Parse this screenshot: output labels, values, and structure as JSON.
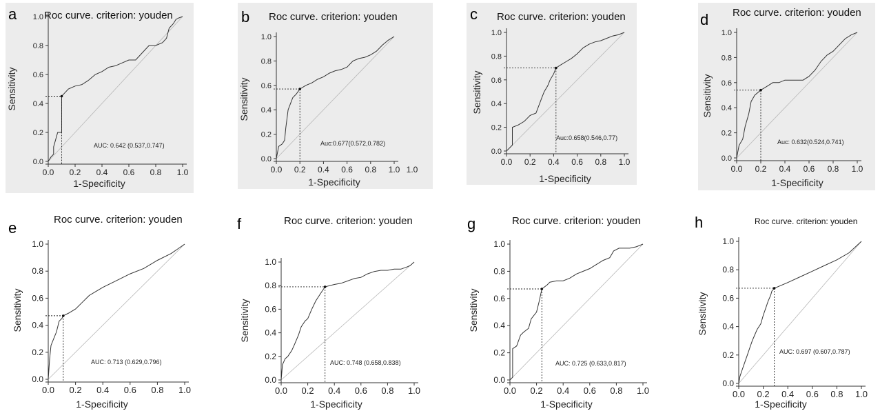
{
  "chart_data": [
    {
      "type": "line",
      "panel": "a",
      "title": "Roc curve. criterion: youden",
      "xlabel": "1-Specificity",
      "ylabel": "Sensitivity",
      "xlim": [
        0,
        1
      ],
      "ylim": [
        0,
        1
      ],
      "xticks": [
        "0.0",
        "0.2",
        "0.4",
        "0.6",
        "0.8",
        "1.0"
      ],
      "yticks": [
        "0.0",
        "0.2",
        "0.4",
        "0.6",
        "0.8",
        "1.0"
      ],
      "annotation": "AUC: 0.642 (0.537,0.747)",
      "cutoff": {
        "x": 0.1,
        "y": 0.45
      },
      "background": "#ececec",
      "x": [
        0,
        0.02,
        0.04,
        0.04,
        0.07,
        0.07,
        0.1,
        0.1,
        0.12,
        0.15,
        0.2,
        0.25,
        0.3,
        0.35,
        0.4,
        0.45,
        0.5,
        0.55,
        0.6,
        0.65,
        0.7,
        0.75,
        0.8,
        0.85,
        0.88,
        0.9,
        0.93,
        0.95,
        0.97,
        1.0
      ],
      "y": [
        0,
        0.03,
        0.05,
        0.1,
        0.2,
        0.2,
        0.2,
        0.45,
        0.47,
        0.5,
        0.52,
        0.53,
        0.56,
        0.6,
        0.62,
        0.65,
        0.66,
        0.68,
        0.7,
        0.7,
        0.75,
        0.8,
        0.8,
        0.82,
        0.85,
        0.92,
        0.95,
        0.98,
        0.99,
        1.0
      ]
    },
    {
      "type": "line",
      "panel": "b",
      "title": "Roc curve. criterion: youden",
      "xlabel": "1-Specificity",
      "ylabel": "Sensitivity",
      "xlim": [
        0,
        1
      ],
      "ylim": [
        0,
        1
      ],
      "xticks": [
        "0.0",
        "0.2",
        "0.4",
        "0.6",
        "0.8",
        "1.0"
      ],
      "yticks": [
        "0.0",
        "0.2",
        "0.4",
        "0.6",
        "0.8",
        "1.0"
      ],
      "annotation": "Auc:0.677(0.572,0.782)",
      "cutoff": {
        "x": 0.2,
        "y": 0.57
      },
      "background": "#ececec",
      "x": [
        0,
        0.02,
        0.05,
        0.07,
        0.08,
        0.1,
        0.12,
        0.14,
        0.17,
        0.2,
        0.25,
        0.3,
        0.35,
        0.4,
        0.45,
        0.5,
        0.55,
        0.6,
        0.65,
        0.7,
        0.75,
        0.8,
        0.85,
        0.9,
        0.95,
        1.0
      ],
      "y": [
        0,
        0.1,
        0.12,
        0.15,
        0.25,
        0.4,
        0.45,
        0.5,
        0.53,
        0.57,
        0.6,
        0.62,
        0.65,
        0.67,
        0.7,
        0.72,
        0.73,
        0.75,
        0.8,
        0.82,
        0.83,
        0.85,
        0.88,
        0.93,
        0.97,
        1.0
      ]
    },
    {
      "type": "line",
      "panel": "c",
      "title": "Roc curve. criterion: youden",
      "xlabel": "1-Specificity",
      "ylabel": "Sensitivity",
      "xlim": [
        0,
        1
      ],
      "ylim": [
        0,
        1
      ],
      "xticks": [
        "0.0",
        "0.2",
        "0.4",
        "0.6",
        "0.8",
        "1.0"
      ],
      "yticks": [
        "0.0",
        "0.2",
        "0.4",
        "0.6",
        "0.8",
        "1.0"
      ],
      "annotation": "Auc:0.658(0.546,0.77)",
      "cutoff": {
        "x": 0.42,
        "y": 0.7
      },
      "background": "#ececec",
      "x": [
        0,
        0.05,
        0.05,
        0.1,
        0.15,
        0.2,
        0.25,
        0.3,
        0.32,
        0.35,
        0.37,
        0.4,
        0.42,
        0.45,
        0.5,
        0.55,
        0.6,
        0.65,
        0.7,
        0.75,
        0.8,
        0.85,
        0.9,
        0.95,
        1.0
      ],
      "y": [
        0,
        0.05,
        0.2,
        0.22,
        0.25,
        0.3,
        0.32,
        0.45,
        0.5,
        0.55,
        0.6,
        0.65,
        0.7,
        0.72,
        0.75,
        0.78,
        0.82,
        0.87,
        0.9,
        0.92,
        0.93,
        0.95,
        0.97,
        0.98,
        1.0
      ]
    },
    {
      "type": "line",
      "panel": "d",
      "title": "Roc curve. criterion: youden",
      "xlabel": "1-Specificity",
      "ylabel": "Sensitivity",
      "xlim": [
        0,
        1
      ],
      "ylim": [
        0,
        1
      ],
      "xticks": [
        "0.0",
        "0.2",
        "0.4",
        "0.6",
        "0.8",
        "1.0"
      ],
      "yticks": [
        "0.0",
        "0.2",
        "0.4",
        "0.6",
        "0.8",
        "1.0"
      ],
      "annotation": "Auc: 0.632(0.524,0.741)",
      "cutoff": {
        "x": 0.2,
        "y": 0.54
      },
      "background": "#ececec",
      "x": [
        0,
        0.02,
        0.05,
        0.07,
        0.1,
        0.12,
        0.15,
        0.2,
        0.25,
        0.3,
        0.35,
        0.4,
        0.45,
        0.5,
        0.55,
        0.6,
        0.65,
        0.7,
        0.75,
        0.8,
        0.85,
        0.9,
        0.95,
        1.0
      ],
      "y": [
        0,
        0.1,
        0.15,
        0.25,
        0.35,
        0.45,
        0.5,
        0.54,
        0.57,
        0.6,
        0.6,
        0.62,
        0.62,
        0.62,
        0.62,
        0.65,
        0.7,
        0.77,
        0.82,
        0.85,
        0.9,
        0.95,
        0.98,
        1.0
      ]
    },
    {
      "type": "line",
      "panel": "e",
      "title": "Roc curve. criterion: youden",
      "xlabel": "1-Specificity",
      "ylabel": "Sensitivity",
      "xlim": [
        0,
        1
      ],
      "ylim": [
        0,
        1
      ],
      "xticks": [
        "0.0",
        "0.2",
        "0.4",
        "0.6",
        "0.8",
        "1.0"
      ],
      "yticks": [
        "0.0",
        "0.2",
        "0.4",
        "0.6",
        "0.8",
        "1.0"
      ],
      "annotation": "AUC: 0.713 (0.629,0.796)",
      "cutoff": {
        "x": 0.11,
        "y": 0.47
      },
      "background": "#ffffff",
      "x": [
        0,
        0.01,
        0.02,
        0.04,
        0.06,
        0.08,
        0.1,
        0.11,
        0.15,
        0.2,
        0.25,
        0.3,
        0.35,
        0.4,
        0.5,
        0.6,
        0.7,
        0.8,
        0.9,
        1.0
      ],
      "y": [
        0,
        0.15,
        0.25,
        0.3,
        0.35,
        0.43,
        0.45,
        0.47,
        0.49,
        0.52,
        0.57,
        0.62,
        0.65,
        0.68,
        0.73,
        0.78,
        0.82,
        0.88,
        0.93,
        1.0
      ]
    },
    {
      "type": "line",
      "panel": "f",
      "title": "Roc curve. criterion: youden",
      "xlabel": "1-Specificity",
      "ylabel": "Sensitivity",
      "xlim": [
        0,
        1
      ],
      "ylim": [
        0,
        1
      ],
      "xticks": [
        "0.0",
        "0.2",
        "0.4",
        "0.6",
        "0.8",
        "1.0"
      ],
      "yticks": [
        "0.0",
        "0.2",
        "0.4",
        "0.6",
        "0.8",
        "1.0"
      ],
      "annotation": "AUC: 0.748 (0.658,0.838)",
      "cutoff": {
        "x": 0.33,
        "y": 0.79
      },
      "background": "#ffffff",
      "x": [
        0,
        0.01,
        0.03,
        0.05,
        0.08,
        0.1,
        0.13,
        0.15,
        0.18,
        0.2,
        0.23,
        0.26,
        0.3,
        0.33,
        0.4,
        0.45,
        0.5,
        0.55,
        0.6,
        0.65,
        0.7,
        0.75,
        0.8,
        0.85,
        0.9,
        0.95,
        0.97,
        1.0
      ],
      "y": [
        0,
        0.13,
        0.18,
        0.2,
        0.25,
        0.3,
        0.38,
        0.45,
        0.5,
        0.52,
        0.6,
        0.67,
        0.74,
        0.79,
        0.81,
        0.82,
        0.84,
        0.86,
        0.87,
        0.9,
        0.92,
        0.93,
        0.93,
        0.94,
        0.94,
        0.96,
        0.97,
        1.0
      ]
    },
    {
      "type": "line",
      "panel": "g",
      "title": "Roc curve. criterion: youden",
      "xlabel": "1-Specificity",
      "ylabel": "Sensitivity",
      "xlim": [
        0,
        1
      ],
      "ylim": [
        0,
        1
      ],
      "xticks": [
        "0.0",
        "0.2",
        "0.4",
        "0.6",
        "0.8",
        "1.0"
      ],
      "yticks": [
        "0.0",
        "0.2",
        "0.4",
        "0.6",
        "0.8",
        "1.0"
      ],
      "annotation": "AUC: 0.725 (0.633,0.817)",
      "cutoff": {
        "x": 0.24,
        "y": 0.67
      },
      "background": "#ffffff",
      "x": [
        0,
        0.02,
        0.02,
        0.05,
        0.08,
        0.1,
        0.14,
        0.16,
        0.2,
        0.22,
        0.24,
        0.28,
        0.3,
        0.35,
        0.4,
        0.45,
        0.5,
        0.55,
        0.6,
        0.65,
        0.7,
        0.75,
        0.78,
        0.82,
        0.85,
        0.9,
        0.95,
        1.0
      ],
      "y": [
        0,
        0.02,
        0.23,
        0.25,
        0.33,
        0.35,
        0.38,
        0.45,
        0.5,
        0.58,
        0.67,
        0.7,
        0.72,
        0.73,
        0.73,
        0.75,
        0.78,
        0.8,
        0.82,
        0.85,
        0.88,
        0.9,
        0.95,
        0.97,
        0.97,
        0.97,
        0.98,
        1.0
      ]
    },
    {
      "type": "line",
      "panel": "h",
      "title": "Roc curve. criterion: youden",
      "xlabel": "1-Specificity",
      "ylabel": "Sensitivity",
      "xlim": [
        0,
        1
      ],
      "ylim": [
        0,
        1
      ],
      "xticks": [
        "0.0",
        "0.2",
        "0.4",
        "0.6",
        "0.8",
        "1.0"
      ],
      "yticks": [
        "0.0",
        "0.2",
        "0.4",
        "0.6",
        "0.8",
        "1.0"
      ],
      "annotation": "AUC: 0.697 (0.607,0.787)",
      "cutoff": {
        "x": 0.29,
        "y": 0.67
      },
      "background": "#ffffff",
      "x": [
        0,
        0.01,
        0.03,
        0.05,
        0.07,
        0.09,
        0.11,
        0.13,
        0.15,
        0.18,
        0.2,
        0.22,
        0.24,
        0.26,
        0.27,
        0.29,
        0.4,
        0.5,
        0.6,
        0.7,
        0.8,
        0.9,
        1.0
      ],
      "y": [
        0,
        0.05,
        0.1,
        0.15,
        0.2,
        0.25,
        0.3,
        0.34,
        0.38,
        0.42,
        0.48,
        0.53,
        0.58,
        0.62,
        0.65,
        0.67,
        0.71,
        0.75,
        0.79,
        0.83,
        0.87,
        0.92,
        1.0
      ]
    }
  ]
}
